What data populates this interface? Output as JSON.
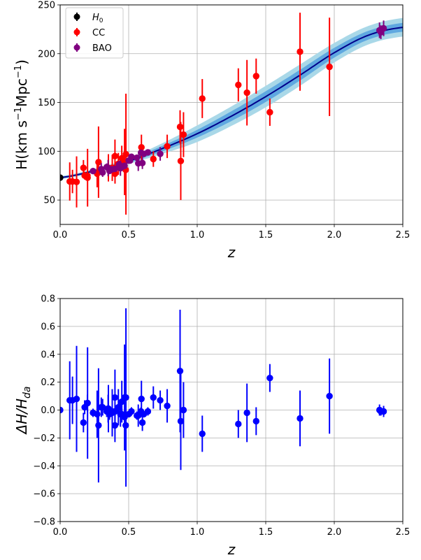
{
  "chart_data": [
    {
      "type": "scatter",
      "panel": "top",
      "xlabel": "z",
      "ylabel_parts": {
        "main": "H(km s",
        "exp1": "−1",
        "mid": "Mpc",
        "exp2": "−1",
        "close": ")"
      },
      "xlim": [
        0,
        2.5
      ],
      "ylim": [
        25,
        250
      ],
      "xticks": [
        "0.0",
        "0.5",
        "1.0",
        "1.5",
        "2.0",
        "2.5"
      ],
      "yticks": [
        "50",
        "100",
        "150",
        "200",
        "250"
      ],
      "grid": true,
      "legend_position": "top-left",
      "legend": [
        {
          "label": "H",
          "subscript": "0",
          "color": "#000000"
        },
        {
          "label": "CC",
          "color": "#ff0000"
        },
        {
          "label": "BAO",
          "color": "#800080"
        }
      ],
      "series": [
        {
          "name": "H0",
          "color": "#000000",
          "points": [
            [
              0.0,
              73.0,
              1.0
            ]
          ]
        },
        {
          "name": "CC",
          "color": "#ff0000",
          "points": [
            [
              0.07,
              69,
              19.6
            ],
            [
              0.09,
              69,
              12
            ],
            [
              0.12,
              68.6,
              26.2
            ],
            [
              0.17,
              83,
              8
            ],
            [
              0.179,
              75,
              4
            ],
            [
              0.199,
              75,
              5
            ],
            [
              0.2,
              72.9,
              29.6
            ],
            [
              0.27,
              77,
              14
            ],
            [
              0.28,
              88.8,
              36.6
            ],
            [
              0.352,
              83,
              14
            ],
            [
              0.3802,
              83,
              13.5
            ],
            [
              0.4,
              95,
              17
            ],
            [
              0.4004,
              77,
              10.2
            ],
            [
              0.4247,
              87.1,
              11.2
            ],
            [
              0.4497,
              92.8,
              12.9
            ],
            [
              0.47,
              89,
              34
            ],
            [
              0.4783,
              80.9,
              9
            ],
            [
              0.48,
              97,
              62
            ],
            [
              0.593,
              104,
              13
            ],
            [
              0.68,
              92,
              8
            ],
            [
              0.781,
              105,
              12
            ],
            [
              0.875,
              125,
              17
            ],
            [
              0.88,
              90,
              40
            ],
            [
              0.9,
              117,
              23
            ],
            [
              1.037,
              154,
              20
            ],
            [
              1.3,
              168,
              17
            ],
            [
              1.363,
              160,
              33.6
            ],
            [
              1.43,
              177,
              18
            ],
            [
              1.53,
              140,
              14
            ],
            [
              1.75,
              202,
              40
            ],
            [
              1.965,
              186.5,
              50.4
            ]
          ]
        },
        {
          "name": "BAO",
          "color": "#800080",
          "points": [
            [
              0.24,
              79.7,
              2.7
            ],
            [
              0.3,
              81.7,
              6.2
            ],
            [
              0.31,
              78.2,
              4.5
            ],
            [
              0.34,
              83.8,
              3.7
            ],
            [
              0.35,
              82.7,
              8.4
            ],
            [
              0.36,
              79.9,
              3.3
            ],
            [
              0.38,
              81.5,
              1.9
            ],
            [
              0.4,
              82.04,
              2.03
            ],
            [
              0.43,
              86.45,
              3.7
            ],
            [
              0.44,
              82.6,
              7.8
            ],
            [
              0.45,
              83.8,
              3.2
            ],
            [
              0.47,
              85.1,
              2.9
            ],
            [
              0.5,
              90.4,
              1.9
            ],
            [
              0.51,
              90.4,
              1.9
            ],
            [
              0.52,
              94.35,
              2.64
            ],
            [
              0.56,
              93.34,
              2.3
            ],
            [
              0.57,
              87.6,
              7.8
            ],
            [
              0.59,
              98.48,
              3.18
            ],
            [
              0.6,
              87.9,
              6.1
            ],
            [
              0.61,
              97.3,
              2.1
            ],
            [
              0.64,
              98.82,
              2.98
            ],
            [
              0.73,
              97.3,
              7.0
            ],
            [
              2.33,
              224,
              8
            ],
            [
              2.34,
              222,
              7
            ],
            [
              2.36,
              226,
              8
            ]
          ]
        }
      ],
      "model_curve": {
        "color": "#00008b",
        "band_colors": [
          "#a9d8e8",
          "#5fa8e0"
        ],
        "x": [
          0.0,
          0.25,
          0.5,
          0.75,
          1.0,
          1.25,
          1.5,
          1.75,
          2.0,
          2.25,
          2.5
        ],
        "y": [
          73.0,
          80.0,
          90.0,
          103.0,
          118.0,
          136.0,
          156.0,
          178.0,
          201.0,
          219.0,
          227.0
        ],
        "sigma1": [
          0.8,
          1.0,
          1.5,
          2.8,
          4.0,
          5.0,
          5.5,
          5.5,
          5.0,
          4.5,
          4.5
        ],
        "sigma2": [
          1.5,
          2.0,
          3.0,
          5.5,
          8.5,
          10.0,
          11.0,
          11.0,
          10.0,
          9.5,
          9.5
        ]
      }
    },
    {
      "type": "scatter",
      "panel": "bottom",
      "xlabel": "z",
      "ylabel_parts": {
        "delta": "ΔH/H",
        "sub": "da"
      },
      "xlim": [
        0,
        2.5
      ],
      "ylim": [
        -0.8,
        0.8
      ],
      "xticks": [
        "0.0",
        "0.5",
        "1.0",
        "1.5",
        "2.0",
        "2.5"
      ],
      "yticks": [
        "−0.8",
        "−0.6",
        "−0.4",
        "−0.2",
        "0.0",
        "0.2",
        "0.4",
        "0.6",
        "0.8"
      ],
      "grid": true,
      "series": [
        {
          "color": "#0000ff",
          "points": [
            [
              0.0,
              0.0,
              0.01
            ],
            [
              0.07,
              0.07,
              0.28
            ],
            [
              0.09,
              0.07,
              0.17
            ],
            [
              0.12,
              0.08,
              0.38
            ],
            [
              0.17,
              -0.09,
              0.07
            ],
            [
              0.179,
              0.02,
              0.05
            ],
            [
              0.199,
              0.05,
              0.06
            ],
            [
              0.2,
              0.05,
              0.4
            ],
            [
              0.24,
              -0.02,
              0.03
            ],
            [
              0.27,
              -0.03,
              0.17
            ],
            [
              0.28,
              -0.11,
              0.41
            ],
            [
              0.3,
              0.02,
              0.07
            ],
            [
              0.31,
              0.02,
              0.06
            ],
            [
              0.34,
              -0.01,
              0.04
            ],
            [
              0.35,
              0.01,
              0.1
            ],
            [
              0.352,
              0.01,
              0.17
            ],
            [
              0.36,
              -0.03,
              0.04
            ],
            [
              0.38,
              -0.01,
              0.02
            ],
            [
              0.38,
              -0.02,
              0.17
            ],
            [
              0.4,
              0.09,
              0.2
            ],
            [
              0.4,
              -0.11,
              0.12
            ],
            [
              0.4,
              -0.01,
              0.02
            ],
            [
              0.4247,
              0.02,
              0.13
            ],
            [
              0.43,
              0.02,
              0.04
            ],
            [
              0.44,
              -0.03,
              0.09
            ],
            [
              0.45,
              0.06,
              0.15
            ],
            [
              0.45,
              -0.03,
              0.04
            ],
            [
              0.47,
              0.09,
              0.38
            ],
            [
              0.47,
              -0.05,
              0.03
            ],
            [
              0.4783,
              -0.11,
              0.1
            ],
            [
              0.48,
              0.09,
              0.64
            ],
            [
              0.5,
              -0.03,
              0.02
            ],
            [
              0.52,
              -0.01,
              0.03
            ],
            [
              0.56,
              -0.04,
              0.03
            ],
            [
              0.57,
              -0.04,
              0.08
            ],
            [
              0.59,
              -0.01,
              0.03
            ],
            [
              0.593,
              0.08,
              0.13
            ],
            [
              0.6,
              -0.09,
              0.06
            ],
            [
              0.61,
              -0.03,
              0.02
            ],
            [
              0.64,
              -0.01,
              0.03
            ],
            [
              0.68,
              0.09,
              0.08
            ],
            [
              0.73,
              0.07,
              0.07
            ],
            [
              0.781,
              0.03,
              0.12
            ],
            [
              0.875,
              0.28,
              0.44
            ],
            [
              0.88,
              -0.08,
              0.35
            ],
            [
              0.9,
              0.0,
              0.2
            ],
            [
              1.037,
              -0.17,
              0.13
            ],
            [
              1.3,
              -0.1,
              0.1
            ],
            [
              1.363,
              -0.02,
              0.21
            ],
            [
              1.43,
              -0.08,
              0.1
            ],
            [
              1.53,
              0.23,
              0.1
            ],
            [
              1.75,
              -0.06,
              0.2
            ],
            [
              1.965,
              0.1,
              0.27
            ],
            [
              2.33,
              0.0,
              0.04
            ],
            [
              2.34,
              -0.01,
              0.03
            ],
            [
              2.36,
              -0.01,
              0.04
            ]
          ]
        }
      ]
    }
  ]
}
